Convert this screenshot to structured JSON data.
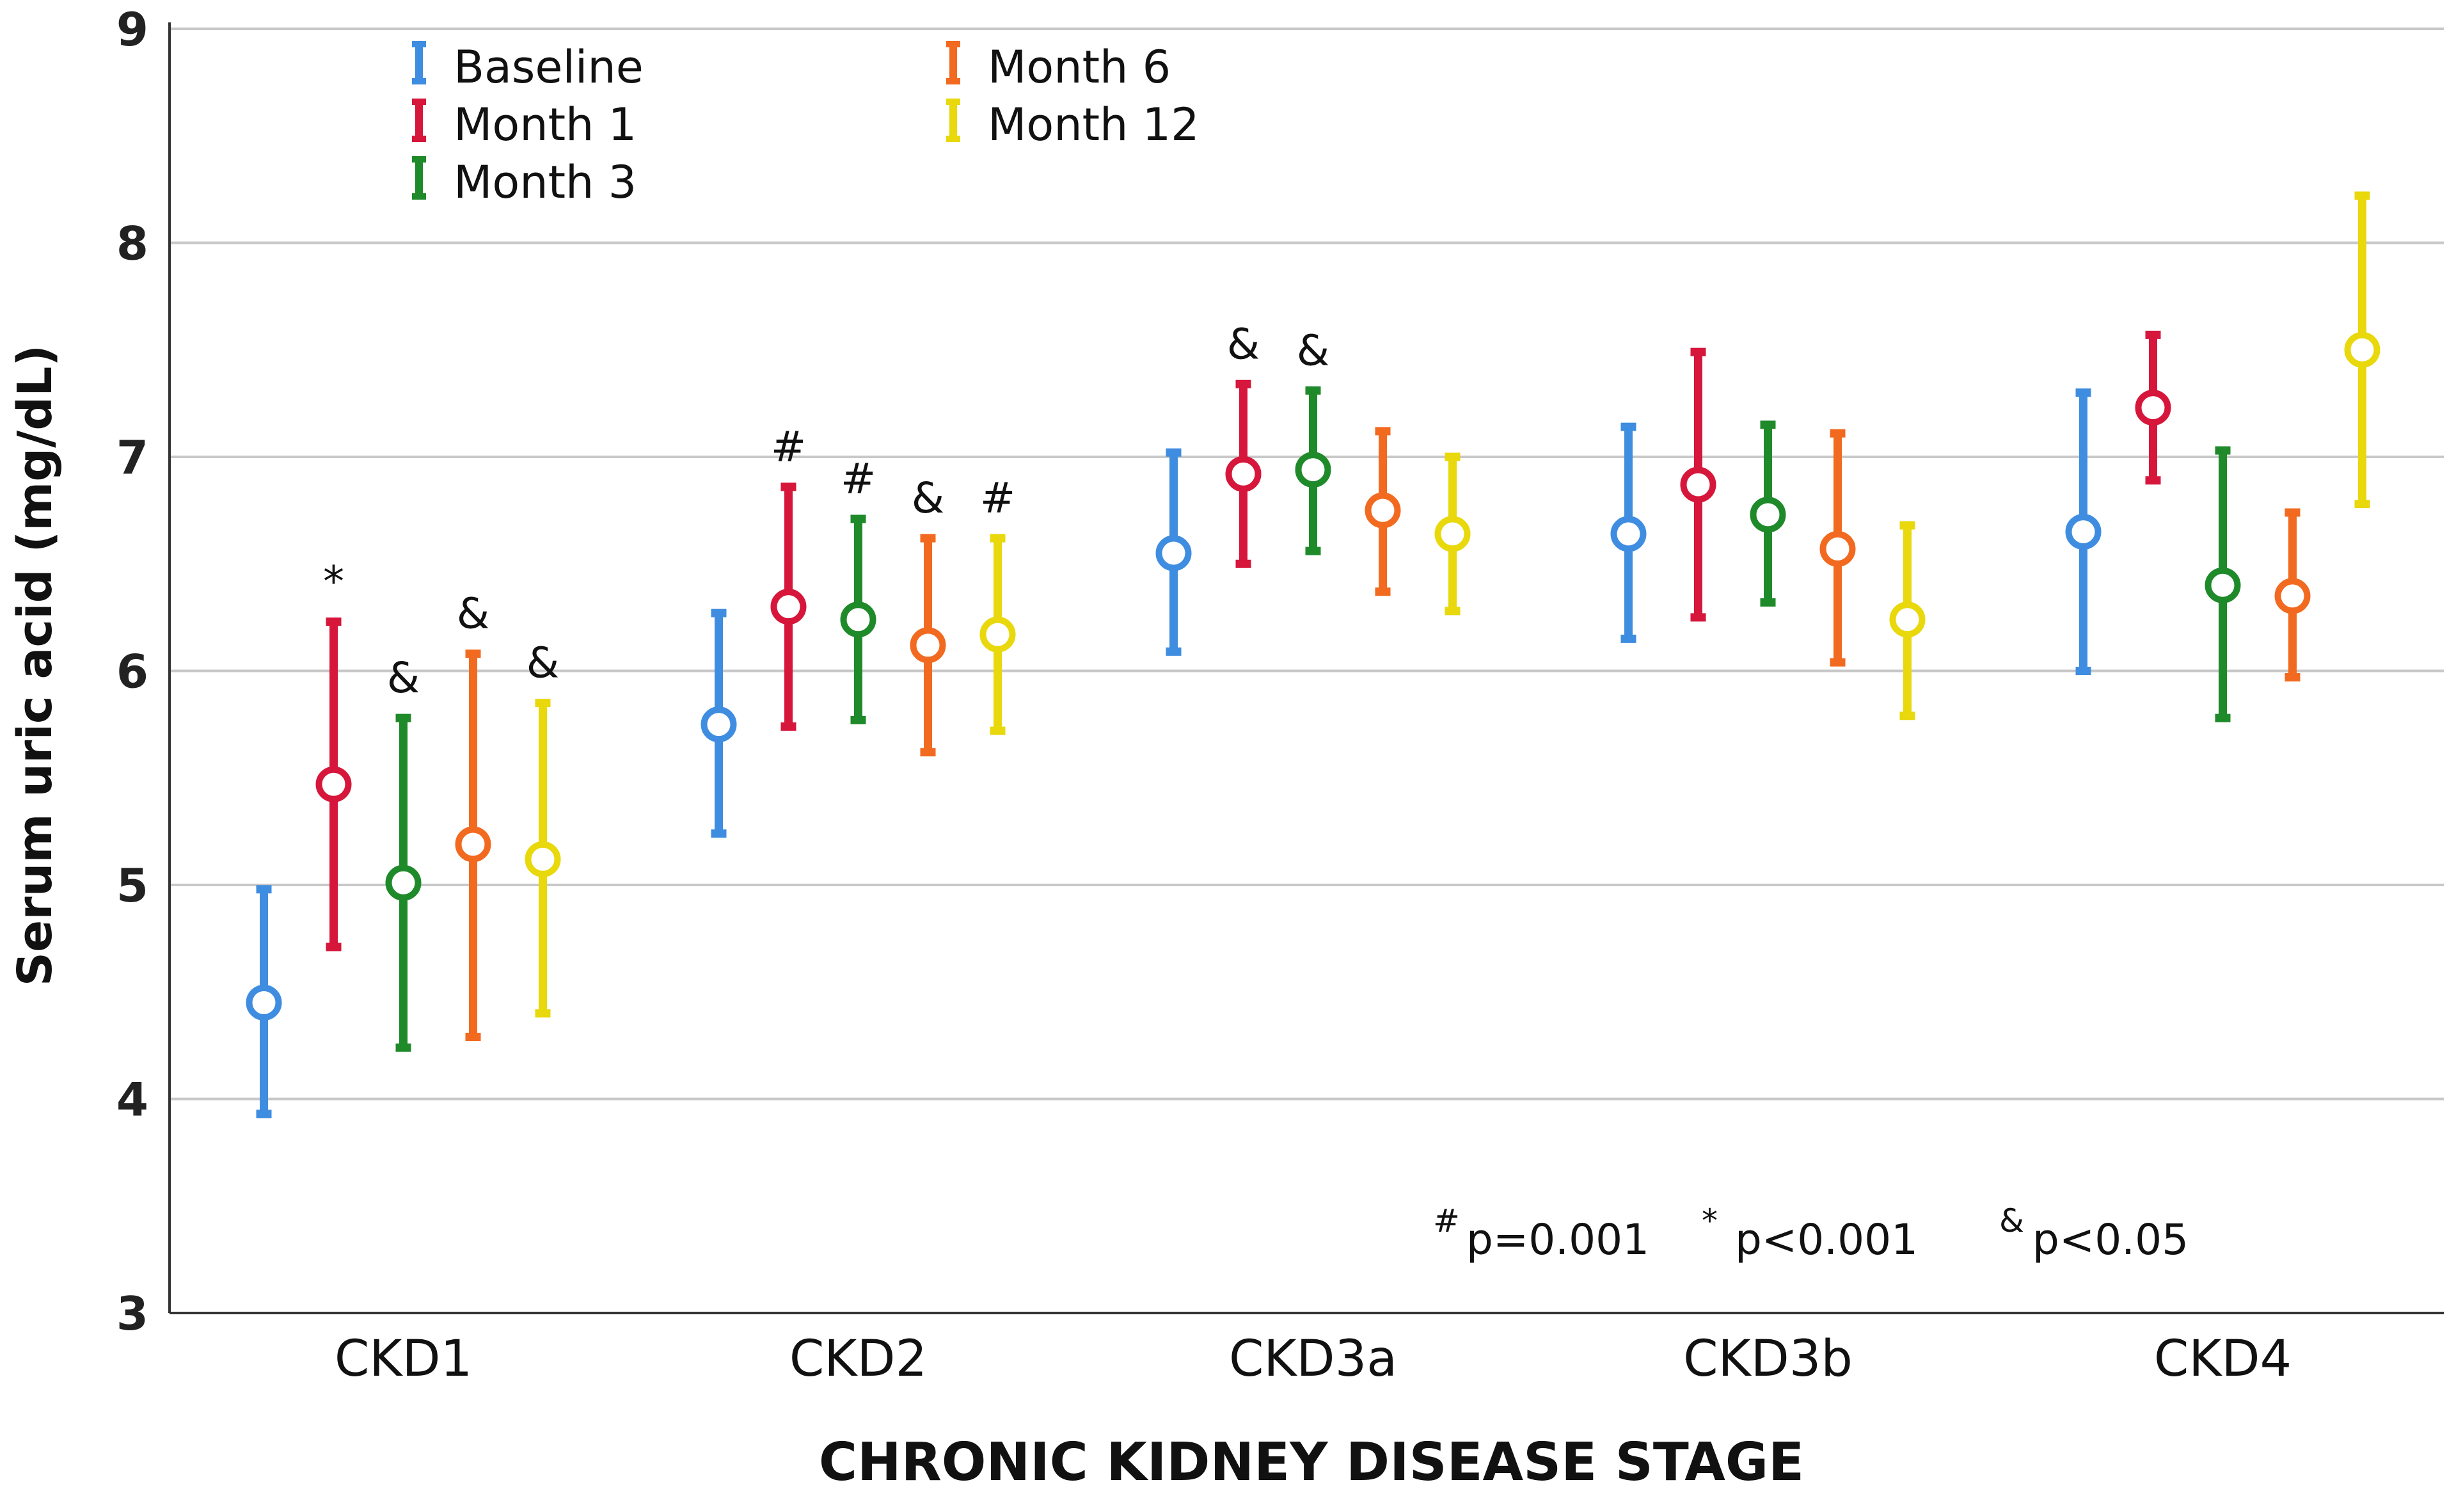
{
  "chart_data": {
    "type": "error_bar",
    "title": "",
    "xlabel": "CHRONIC KIDNEY DISEASE STAGE",
    "ylabel": "Serum uric acid (mg/dL)",
    "ylim": [
      3,
      9
    ],
    "yticks": [
      "3",
      "4",
      "5",
      "6",
      "7",
      "8",
      "9"
    ],
    "grid": true,
    "legend_position": "top-left",
    "categories": [
      "CKD1",
      "CKD2",
      "CKD3a",
      "CKD3b",
      "CKD4"
    ],
    "series": [
      {
        "name": "Baseline",
        "color": "#3f8de0",
        "mean": [
          4.45,
          5.75,
          6.55,
          6.64,
          6.65
        ],
        "lower": [
          3.93,
          5.24,
          6.09,
          6.15,
          6.0
        ],
        "upper": [
          4.98,
          6.27,
          7.02,
          7.14,
          7.3
        ],
        "marks": [
          "",
          "",
          "",
          "",
          ""
        ]
      },
      {
        "name": "Month 1",
        "color": "#d6163b",
        "mean": [
          5.47,
          6.3,
          6.92,
          6.87,
          7.23
        ],
        "lower": [
          4.71,
          5.74,
          6.5,
          6.25,
          6.89
        ],
        "upper": [
          6.23,
          6.86,
          7.34,
          7.49,
          7.57
        ],
        "marks": [
          "*",
          "#",
          "&",
          "",
          ""
        ]
      },
      {
        "name": "Month 3",
        "color": "#1f8a2a",
        "mean": [
          5.01,
          6.24,
          6.94,
          6.73,
          6.4
        ],
        "lower": [
          4.24,
          5.77,
          6.56,
          6.32,
          5.78
        ],
        "upper": [
          5.78,
          6.71,
          7.31,
          7.15,
          7.03
        ],
        "marks": [
          "&",
          "#",
          "&",
          "",
          ""
        ]
      },
      {
        "name": "Month 6",
        "color": "#f26a1f",
        "mean": [
          5.19,
          6.12,
          6.75,
          6.57,
          6.35
        ],
        "lower": [
          4.29,
          5.62,
          6.37,
          6.04,
          5.97
        ],
        "upper": [
          6.08,
          6.62,
          7.12,
          7.11,
          6.74
        ],
        "marks": [
          "&",
          "&",
          "",
          "",
          ""
        ]
      },
      {
        "name": "Month 12",
        "color": "#e8d80c",
        "mean": [
          5.12,
          6.17,
          6.64,
          6.24,
          7.5
        ],
        "lower": [
          4.4,
          5.72,
          6.28,
          5.79,
          6.78
        ],
        "upper": [
          5.85,
          6.62,
          7.0,
          6.68,
          8.22
        ],
        "marks": [
          "&",
          "#",
          "",
          "",
          ""
        ]
      }
    ],
    "notes": [
      {
        "symbol": "#",
        "text": "p=0.001"
      },
      {
        "symbol": "*",
        "text": "p<0.001"
      },
      {
        "symbol": "&",
        "text": "p<0.05"
      }
    ]
  }
}
